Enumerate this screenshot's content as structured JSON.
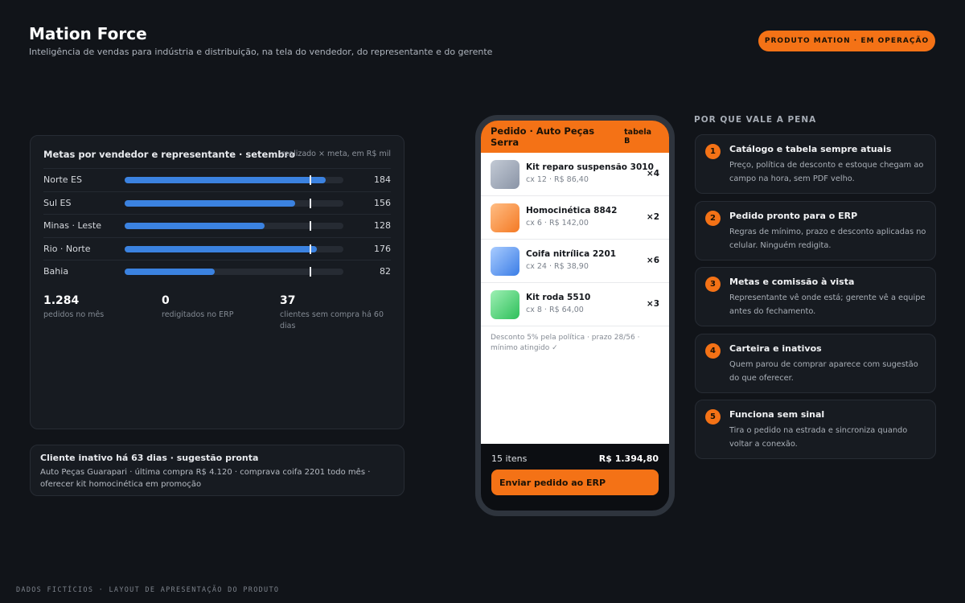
{
  "header": {
    "title": "Mation Force",
    "subtitle": "Inteligência de vendas para indústria e distribuição, na tela do vendedor, do representante e do gerente",
    "badge": "PRODUTO MATION · EM OPERAÇÃO"
  },
  "goals": {
    "title": "Metas por vendedor e representante · setembro",
    "note": "realizado × meta, em R$ mil",
    "xlim": [
      0,
      200
    ],
    "target": 170,
    "rows": [
      {
        "label": "Norte ES",
        "value": 184
      },
      {
        "label": "Sul ES",
        "value": 156
      },
      {
        "label": "Minas · Leste",
        "value": 128
      },
      {
        "label": "Rio · Norte",
        "value": 176
      },
      {
        "label": "Bahia",
        "value": 82
      }
    ],
    "stats": [
      {
        "value": "1.284",
        "label": "pedidos no mês"
      },
      {
        "value": "0",
        "label": "redigitados no ERP"
      },
      {
        "value": "37",
        "label": "clientes sem compra há 60 dias"
      }
    ]
  },
  "alert": {
    "title": "Cliente inativo há 63 dias · sugestão pronta",
    "text": "Auto Peças Guarapari · última compra R$ 4.120 · comprava coifa 2201 todo mês · oferecer kit homocinética em promoção"
  },
  "phone": {
    "title": "Pedido · Auto Peças Serra",
    "tag": "tabela B",
    "items": [
      {
        "name": "Kit reparo suspensão 3010",
        "detail": "cx 12 · R$ 86,40",
        "qty": "×4"
      },
      {
        "name": "Homocinética 8842",
        "detail": "cx 6 · R$ 142,00",
        "qty": "×2"
      },
      {
        "name": "Coifa nitrílica 2201",
        "detail": "cx 24 · R$ 38,90",
        "qty": "×6"
      },
      {
        "name": "Kit roda 5510",
        "detail": "cx 8 · R$ 64,00",
        "qty": "×3"
      }
    ],
    "note": "Desconto 5% pela política · prazo 28/56 · mínimo atingido ✓",
    "count": "15 itens",
    "total": "R$ 1.394,80",
    "button": "Enviar pedido ao ERP"
  },
  "benefits": {
    "heading": "POR QUE VALE A PENA",
    "items": [
      {
        "number": 1,
        "title": "Catálogo e tabela sempre atuais",
        "text": "Preço, política de desconto e estoque chegam ao campo na hora, sem PDF velho."
      },
      {
        "number": 2,
        "title": "Pedido pronto para o ERP",
        "text": "Regras de mínimo, prazo e desconto aplicadas no celular. Ninguém redigita."
      },
      {
        "number": 3,
        "title": "Metas e comissão à vista",
        "text": "Representante vê onde está; gerente vê a equipe antes do fechamento."
      },
      {
        "number": 4,
        "title": "Carteira e inativos",
        "text": "Quem parou de comprar aparece com sugestão do que oferecer."
      },
      {
        "number": 5,
        "title": "Funciona sem sinal",
        "text": "Tira o pedido na estrada e sincroniza quando voltar a conexão."
      }
    ]
  },
  "footer": "DADOS FICTÍCIOS · LAYOUT DE APRESENTAÇÃO DO PRODUTO"
}
